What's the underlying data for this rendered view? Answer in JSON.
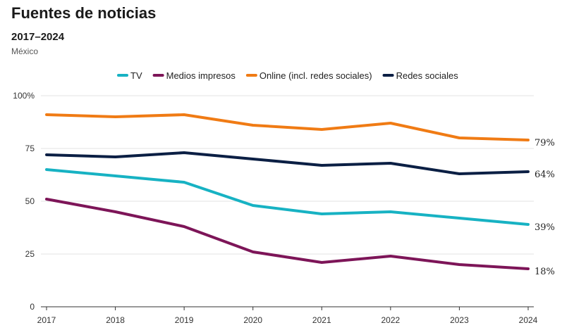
{
  "header": {
    "title": "Fuentes de noticias",
    "subtitle": "2017–2024",
    "note": "México"
  },
  "chart_data": {
    "type": "line",
    "title": "Fuentes de noticias",
    "subtitle": "2017–2024",
    "x": [
      "2017",
      "2018",
      "2019",
      "2020",
      "2021",
      "2022",
      "2023",
      "2024"
    ],
    "ylim": [
      0,
      100
    ],
    "yticks": [
      0,
      25,
      50,
      75,
      100
    ],
    "ytick_labels": [
      "0",
      "25",
      "50",
      "75",
      "100%"
    ],
    "grid": true,
    "legend_position": "top",
    "series": [
      {
        "name": "TV",
        "color": "#17b2c3",
        "values": [
          65,
          62,
          59,
          48,
          44,
          45,
          42,
          39
        ],
        "end_label": "39%"
      },
      {
        "name": "Medios impresos",
        "color": "#7d1558",
        "values": [
          51,
          45,
          38,
          26,
          21,
          24,
          20,
          18
        ],
        "end_label": "18%"
      },
      {
        "name": "Online (incl. redes sociales)",
        "color": "#f07b14",
        "values": [
          91,
          90,
          91,
          86,
          84,
          87,
          80,
          79
        ],
        "end_label": "79%"
      },
      {
        "name": "Redes sociales",
        "color": "#0b1f44",
        "values": [
          72,
          71,
          73,
          70,
          67,
          68,
          63,
          64
        ],
        "end_label": "64%"
      }
    ]
  }
}
